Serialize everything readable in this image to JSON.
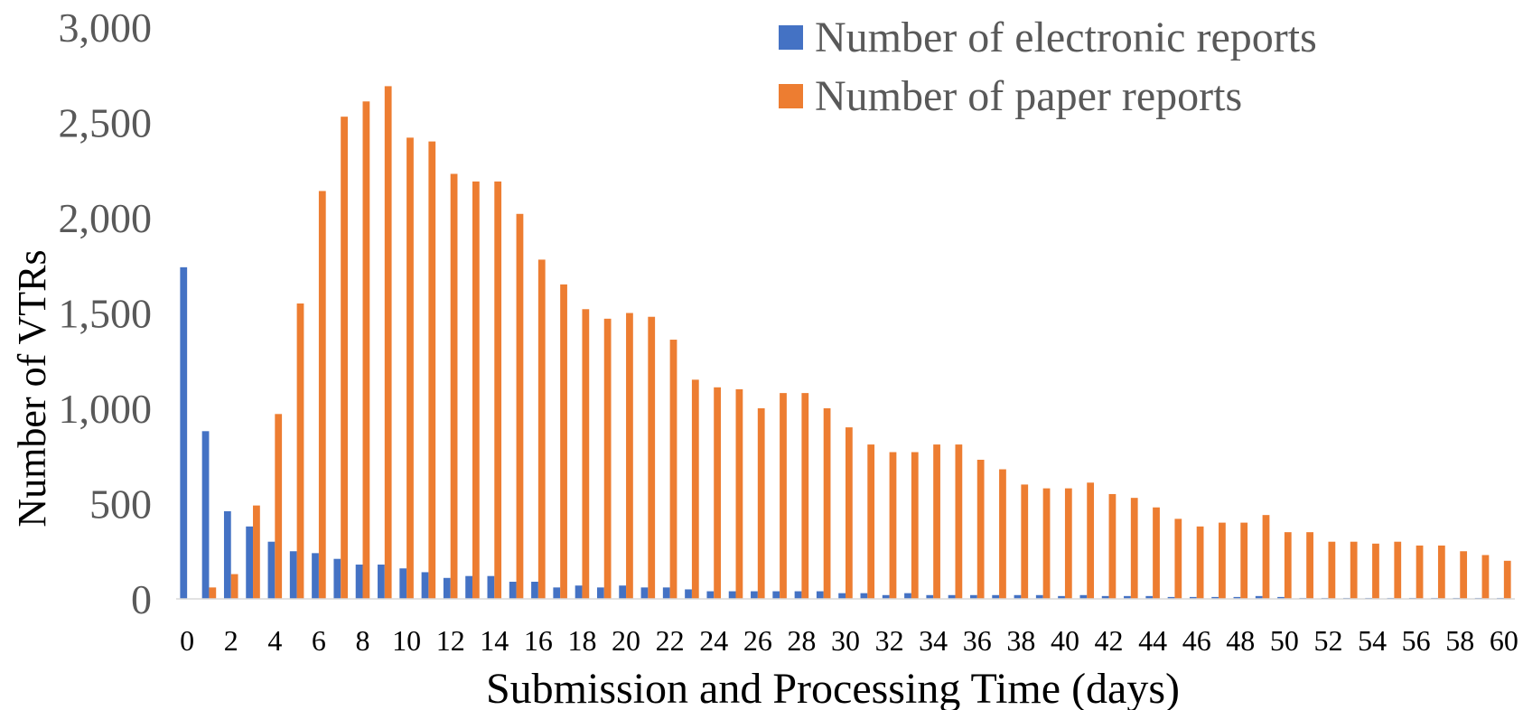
{
  "chart_data": {
    "type": "bar",
    "title": "",
    "xlabel": "Submission and Processing Time (days)",
    "ylabel": "Number of VTRs",
    "ylim": [
      0,
      3000
    ],
    "yticks": [
      "0",
      "500",
      "1,000",
      "1,500",
      "2,000",
      "2,500",
      "3,000"
    ],
    "yticks_values": [
      0,
      500,
      1000,
      1500,
      2000,
      2500,
      3000
    ],
    "categories": [
      0,
      1,
      2,
      3,
      4,
      5,
      6,
      7,
      8,
      9,
      10,
      11,
      12,
      13,
      14,
      15,
      16,
      17,
      18,
      19,
      20,
      21,
      22,
      23,
      24,
      25,
      26,
      27,
      28,
      29,
      30,
      31,
      32,
      33,
      34,
      35,
      36,
      37,
      38,
      39,
      40,
      41,
      42,
      43,
      44,
      45,
      46,
      47,
      48,
      49,
      50,
      51,
      52,
      53,
      54,
      55,
      56,
      57,
      58,
      59,
      60
    ],
    "xtick_labels": [
      "0",
      "2",
      "4",
      "6",
      "8",
      "10",
      "12",
      "14",
      "16",
      "18",
      "20",
      "22",
      "24",
      "26",
      "28",
      "30",
      "32",
      "34",
      "36",
      "38",
      "40",
      "42",
      "44",
      "46",
      "48",
      "50",
      "52",
      "54",
      "56",
      "58",
      "60"
    ],
    "grid": false,
    "legend_position": "top-right",
    "series": [
      {
        "name": "Number of electronic reports",
        "color": "#4472C4",
        "values": [
          1740,
          880,
          460,
          380,
          300,
          250,
          240,
          210,
          180,
          180,
          160,
          140,
          110,
          120,
          120,
          90,
          90,
          60,
          70,
          60,
          70,
          60,
          60,
          50,
          40,
          40,
          40,
          40,
          40,
          40,
          30,
          30,
          20,
          30,
          20,
          20,
          20,
          20,
          20,
          20,
          15,
          20,
          15,
          15,
          15,
          10,
          10,
          10,
          10,
          15,
          10,
          5,
          5,
          5,
          5,
          5,
          5,
          5,
          5,
          5,
          5
        ]
      },
      {
        "name": "Number of paper reports",
        "color": "#ED7D31",
        "values": [
          0,
          60,
          130,
          490,
          970,
          1550,
          2140,
          2530,
          2610,
          2690,
          2420,
          2400,
          2230,
          2190,
          2190,
          2020,
          1780,
          1650,
          1520,
          1470,
          1500,
          1480,
          1360,
          1150,
          1110,
          1100,
          1000,
          1080,
          1080,
          1000,
          900,
          810,
          770,
          770,
          810,
          810,
          730,
          680,
          600,
          580,
          580,
          610,
          550,
          530,
          480,
          420,
          380,
          400,
          400,
          440,
          350,
          350,
          300,
          300,
          290,
          300,
          280,
          280,
          250,
          230,
          200
        ]
      }
    ]
  }
}
